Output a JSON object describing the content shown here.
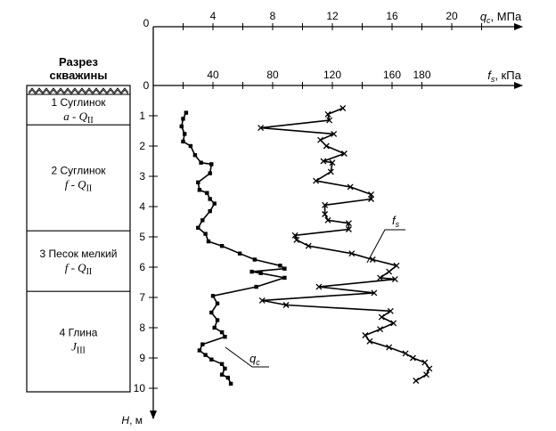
{
  "chart_data": {
    "type": "line",
    "section": {
      "header": [
        "Разрез",
        "скважины"
      ],
      "layers": [
        {
          "name": "1 Суглинок",
          "index_main": "a - Q",
          "index_sub": "II",
          "top": 0.3,
          "bottom": 1.3
        },
        {
          "name": "2 Суглинок",
          "index_main": "f - Q",
          "index_sub": "II",
          "top": 1.3,
          "bottom": 4.8
        },
        {
          "name": "3 Песок мелкий",
          "index_main": "f - Q",
          "index_sub": "II",
          "top": 4.8,
          "bottom": 6.8
        },
        {
          "name": "4 Глина",
          "index_main": "J",
          "index_sub": "III",
          "top": 6.8,
          "bottom": 10.0
        }
      ]
    },
    "depth_axis": {
      "label_main": "H",
      "label_unit": ", м",
      "ticks": [
        1,
        2,
        3,
        4,
        5,
        6,
        7,
        8,
        9,
        10
      ],
      "range": [
        0,
        10.8
      ]
    },
    "qc_axis": {
      "label_main": "q",
      "label_sub": "c",
      "label_unit": ", МПа",
      "zero_label": "0",
      "ticks": [
        4,
        8,
        12,
        16,
        20
      ],
      "minor_ticks": [
        2,
        6,
        10,
        14,
        18,
        22
      ],
      "range": [
        0,
        24
      ]
    },
    "fs_axis": {
      "label_main": "f",
      "label_sub": "s",
      "label_unit": ", кПа",
      "zero_label": "0",
      "ticks": [
        40,
        80,
        120,
        160,
        180
      ],
      "minor_ticks": [
        20,
        60,
        100,
        140
      ],
      "range": [
        0,
        210
      ]
    },
    "series": [
      {
        "name": "qc",
        "label_main": "q",
        "label_sub": "c",
        "marker": "square",
        "points": [
          [
            2.2,
            0.9
          ],
          [
            2.0,
            1.1
          ],
          [
            1.9,
            1.35
          ],
          [
            2.1,
            1.6
          ],
          [
            2.0,
            1.85
          ],
          [
            2.5,
            2.0
          ],
          [
            2.8,
            2.3
          ],
          [
            3.2,
            2.55
          ],
          [
            3.9,
            2.6
          ],
          [
            3.8,
            2.9
          ],
          [
            3.0,
            3.2
          ],
          [
            3.1,
            3.45
          ],
          [
            3.6,
            3.55
          ],
          [
            3.8,
            3.75
          ],
          [
            4.1,
            3.9
          ],
          [
            3.8,
            4.15
          ],
          [
            3.3,
            4.45
          ],
          [
            3.0,
            4.7
          ],
          [
            3.5,
            4.9
          ],
          [
            3.7,
            5.15
          ],
          [
            4.6,
            5.3
          ],
          [
            5.8,
            5.55
          ],
          [
            6.8,
            5.75
          ],
          [
            8.5,
            5.95
          ],
          [
            8.8,
            6.05
          ],
          [
            6.6,
            6.15
          ],
          [
            7.2,
            6.2
          ],
          [
            8.8,
            6.35
          ],
          [
            6.9,
            6.65
          ],
          [
            4.0,
            6.95
          ],
          [
            4.3,
            7.2
          ],
          [
            3.9,
            7.5
          ],
          [
            4.3,
            7.75
          ],
          [
            4.1,
            8.0
          ],
          [
            4.6,
            8.15
          ],
          [
            4.8,
            8.3
          ],
          [
            3.3,
            8.55
          ],
          [
            3.1,
            8.75
          ],
          [
            3.5,
            8.9
          ],
          [
            3.9,
            9.05
          ],
          [
            4.6,
            9.2
          ],
          [
            4.8,
            9.35
          ],
          [
            4.6,
            9.55
          ],
          [
            5.0,
            9.65
          ],
          [
            5.2,
            9.85
          ]
        ]
      },
      {
        "name": "fs",
        "label_main": "f",
        "label_sub": "s",
        "marker": "cross",
        "points": [
          [
            127,
            0.75
          ],
          [
            117,
            0.95
          ],
          [
            118,
            1.15
          ],
          [
            72,
            1.4
          ],
          [
            121,
            1.6
          ],
          [
            112,
            1.8
          ],
          [
            116,
            2.0
          ],
          [
            128,
            2.25
          ],
          [
            114,
            2.5
          ],
          [
            120,
            2.55
          ],
          [
            119,
            2.85
          ],
          [
            109,
            3.15
          ],
          [
            132,
            3.35
          ],
          [
            146,
            3.6
          ],
          [
            146,
            3.75
          ],
          [
            115,
            3.95
          ],
          [
            115,
            4.25
          ],
          [
            117,
            4.45
          ],
          [
            131,
            4.55
          ],
          [
            131,
            4.75
          ],
          [
            95,
            4.95
          ],
          [
            96,
            5.1
          ],
          [
            104,
            5.3
          ],
          [
            133,
            5.55
          ],
          [
            147,
            5.75
          ],
          [
            163,
            5.95
          ],
          [
            158,
            6.15
          ],
          [
            152,
            6.35
          ],
          [
            162,
            6.4
          ],
          [
            111,
            6.65
          ],
          [
            148,
            6.85
          ],
          [
            73,
            7.1
          ],
          [
            89,
            7.25
          ],
          [
            159,
            7.45
          ],
          [
            153,
            7.65
          ],
          [
            161,
            7.85
          ],
          [
            152,
            8.05
          ],
          [
            142,
            8.25
          ],
          [
            145,
            8.45
          ],
          [
            158,
            8.65
          ],
          [
            169,
            8.85
          ],
          [
            174,
            9.0
          ],
          [
            182,
            9.15
          ],
          [
            185,
            9.35
          ],
          [
            183,
            9.55
          ],
          [
            176,
            9.75
          ]
        ]
      }
    ]
  }
}
